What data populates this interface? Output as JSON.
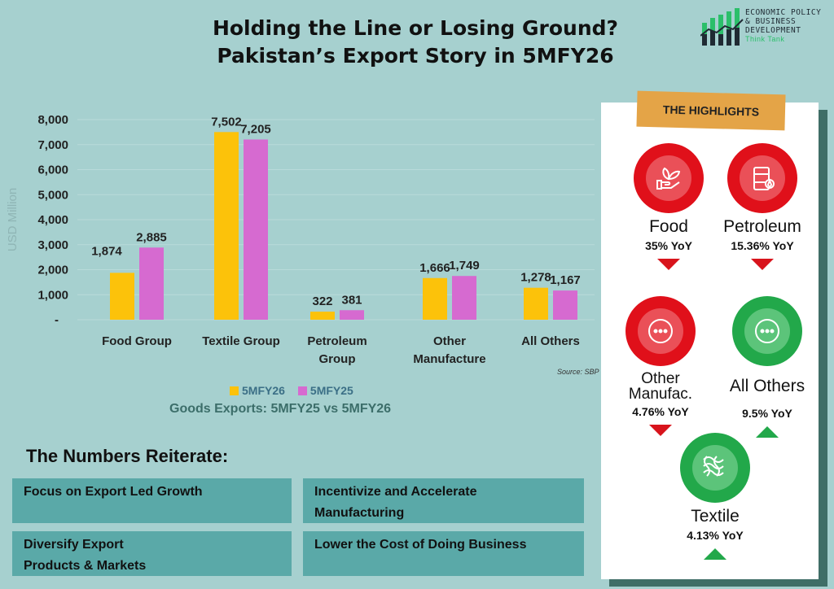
{
  "header": {
    "title_line1": "Holding the Line or Losing Ground?",
    "title_line2": "Pakistan’s Export Story in 5MFY26"
  },
  "logo": {
    "line1": "ECONOMIC POLICY",
    "line2": "& BUSINESS",
    "line3": "DEVELOPMENT",
    "line4": "Think Tank"
  },
  "chart_data": {
    "type": "bar",
    "title": "Goods Exports: 5MFY25 vs 5MFY26",
    "ylabel": "USD Million",
    "xlabel": "",
    "ylim": [
      0,
      8000
    ],
    "yticks": [
      "-",
      "1,000",
      "2,000",
      "3,000",
      "4,000",
      "5,000",
      "6,000",
      "7,000",
      "8,000"
    ],
    "categories": [
      [
        "Food Group"
      ],
      [
        "Textile Group"
      ],
      [
        "Petroleum",
        "Group"
      ],
      [
        "Other",
        "Manufacture"
      ],
      [
        "All Others"
      ]
    ],
    "series": [
      {
        "name": "5MFY26",
        "color": "#fcc20a",
        "values": [
          1874,
          7502,
          322,
          1666,
          1278
        ],
        "labels": [
          "1,874",
          "7,502",
          "322",
          "1,666",
          "1,278"
        ]
      },
      {
        "name": "5MFY25",
        "color": "#d66ad0",
        "values": [
          2885,
          7205,
          381,
          1749,
          1167
        ],
        "labels": [
          "2,885",
          "7,205",
          "381",
          "1,749",
          "1,167"
        ]
      }
    ],
    "legend": "bottom",
    "source": "Source: SBP"
  },
  "numbers": {
    "title": "The Numbers Reiterate:",
    "boxes": [
      {
        "l1": "Focus on Export Led Growth",
        "l2": ""
      },
      {
        "l1": "Incentivize and Accelerate",
        "l2": "Manufacturing"
      },
      {
        "l1": "Diversify Export",
        "l2": "Products & Markets"
      },
      {
        "l1": "Lower the Cost of Doing Business",
        "l2": ""
      }
    ]
  },
  "highlights": {
    "title": "THE HIGHLIGHTS",
    "items": [
      {
        "name": "Food",
        "yoy": "35% YoY",
        "dir": "down",
        "icon": "plant-hand-icon"
      },
      {
        "name": "Petroleum",
        "yoy": "15.36% YoY",
        "dir": "down",
        "icon": "oil-barrel-icon"
      },
      {
        "name": "Other Manufac.",
        "name1": "Other",
        "name2": "Manufac.",
        "yoy": "4.76% YoY",
        "dir": "down",
        "icon": "ellipsis-icon"
      },
      {
        "name": "All Others",
        "yoy": "9.5% YoY",
        "dir": "up",
        "icon": "ellipsis-icon"
      },
      {
        "name": "Textile",
        "yoy": "4.13% YoY",
        "dir": "up",
        "icon": "fabric-icon"
      }
    ]
  }
}
